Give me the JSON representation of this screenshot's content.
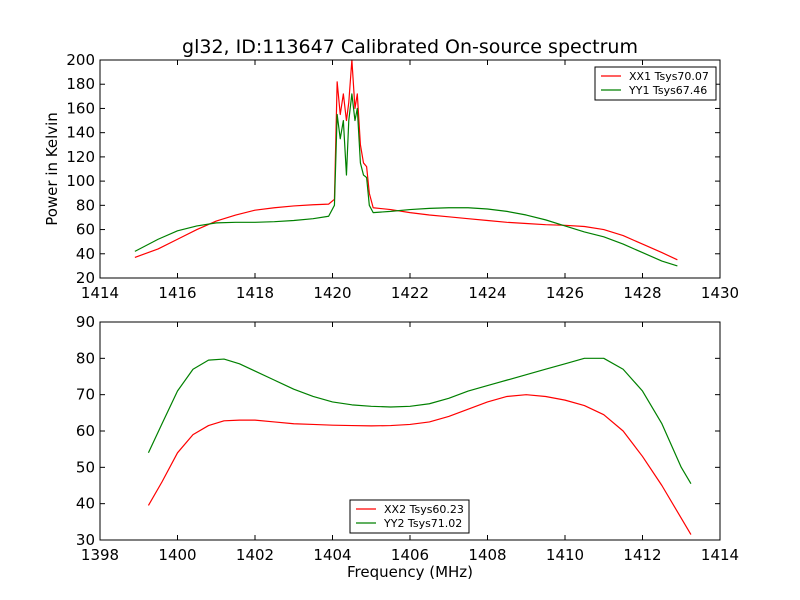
{
  "chart_data": [
    {
      "type": "line",
      "title": "gl32, ID:113647 Calibrated On-source spectrum",
      "xlabel": "",
      "ylabel": "Power in Kelvin",
      "xlim": [
        1414,
        1430
      ],
      "ylim": [
        20,
        200
      ],
      "xticks": [
        1414,
        1416,
        1418,
        1420,
        1422,
        1424,
        1426,
        1428,
        1430
      ],
      "yticks": [
        20,
        40,
        60,
        80,
        100,
        120,
        140,
        160,
        180,
        200
      ],
      "legend_position": "top-right",
      "series": [
        {
          "name": "XX1 Tsys70.07",
          "color": "#ff0000",
          "points": [
            [
              1414.9,
              37
            ],
            [
              1415.5,
              44
            ],
            [
              1416.0,
              52
            ],
            [
              1416.5,
              60
            ],
            [
              1417.0,
              67
            ],
            [
              1417.5,
              72
            ],
            [
              1418.0,
              76
            ],
            [
              1418.5,
              78
            ],
            [
              1419.0,
              79.5
            ],
            [
              1419.5,
              80.5
            ],
            [
              1419.9,
              81
            ],
            [
              1420.05,
              85
            ],
            [
              1420.12,
              182
            ],
            [
              1420.2,
              155
            ],
            [
              1420.28,
              172
            ],
            [
              1420.36,
              150
            ],
            [
              1420.42,
              165
            ],
            [
              1420.5,
              200
            ],
            [
              1420.58,
              160
            ],
            [
              1420.64,
              172
            ],
            [
              1420.72,
              130
            ],
            [
              1420.8,
              115
            ],
            [
              1420.88,
              112
            ],
            [
              1420.95,
              90
            ],
            [
              1421.05,
              78
            ],
            [
              1421.5,
              76.5
            ],
            [
              1422.0,
              74
            ],
            [
              1422.5,
              72
            ],
            [
              1423.0,
              70.5
            ],
            [
              1423.5,
              69
            ],
            [
              1424.0,
              67.5
            ],
            [
              1424.5,
              66
            ],
            [
              1425.0,
              65
            ],
            [
              1425.5,
              64
            ],
            [
              1426.0,
              63.5
            ],
            [
              1426.5,
              62.5
            ],
            [
              1427.0,
              60
            ],
            [
              1427.5,
              55
            ],
            [
              1428.0,
              48
            ],
            [
              1428.5,
              41
            ],
            [
              1428.9,
              35
            ]
          ]
        },
        {
          "name": "YY1 Tsys67.46",
          "color": "#008000",
          "points": [
            [
              1414.9,
              42
            ],
            [
              1415.5,
              52
            ],
            [
              1416.0,
              59
            ],
            [
              1416.5,
              63
            ],
            [
              1417.0,
              65.5
            ],
            [
              1417.5,
              66
            ],
            [
              1418.0,
              66
            ],
            [
              1418.5,
              66.5
            ],
            [
              1419.0,
              67.5
            ],
            [
              1419.5,
              69
            ],
            [
              1419.9,
              71
            ],
            [
              1420.05,
              80
            ],
            [
              1420.12,
              155
            ],
            [
              1420.2,
              135
            ],
            [
              1420.28,
              150
            ],
            [
              1420.36,
              105
            ],
            [
              1420.42,
              150
            ],
            [
              1420.5,
              172
            ],
            [
              1420.58,
              150
            ],
            [
              1420.64,
              160
            ],
            [
              1420.72,
              115
            ],
            [
              1420.8,
              105
            ],
            [
              1420.88,
              103
            ],
            [
              1420.95,
              80
            ],
            [
              1421.05,
              74
            ],
            [
              1421.5,
              75
            ],
            [
              1422.0,
              76.5
            ],
            [
              1422.5,
              77.5
            ],
            [
              1423.0,
              78
            ],
            [
              1423.5,
              78
            ],
            [
              1424.0,
              77
            ],
            [
              1424.5,
              75
            ],
            [
              1425.0,
              72
            ],
            [
              1425.5,
              68
            ],
            [
              1426.0,
              63
            ],
            [
              1426.5,
              58
            ],
            [
              1427.0,
              54
            ],
            [
              1427.5,
              48
            ],
            [
              1428.0,
              41
            ],
            [
              1428.5,
              34
            ],
            [
              1428.9,
              30
            ]
          ]
        }
      ]
    },
    {
      "type": "line",
      "title": "",
      "xlabel": "Frequency (MHz)",
      "ylabel": "",
      "xlim": [
        1398,
        1414
      ],
      "ylim": [
        30,
        90
      ],
      "xticks": [
        1398,
        1400,
        1402,
        1404,
        1406,
        1408,
        1410,
        1412,
        1414
      ],
      "yticks": [
        30,
        40,
        50,
        60,
        70,
        80,
        90
      ],
      "legend_position": "bottom-center",
      "series": [
        {
          "name": "XX2 Tsys60.23",
          "color": "#ff0000",
          "points": [
            [
              1399.25,
              39.5
            ],
            [
              1399.6,
              46
            ],
            [
              1400.0,
              54
            ],
            [
              1400.4,
              59
            ],
            [
              1400.8,
              61.5
            ],
            [
              1401.2,
              62.8
            ],
            [
              1401.6,
              63
            ],
            [
              1402.0,
              63
            ],
            [
              1402.5,
              62.5
            ],
            [
              1403.0,
              62
            ],
            [
              1403.5,
              61.8
            ],
            [
              1404.0,
              61.6
            ],
            [
              1404.5,
              61.5
            ],
            [
              1405.0,
              61.4
            ],
            [
              1405.5,
              61.5
            ],
            [
              1406.0,
              61.8
            ],
            [
              1406.5,
              62.5
            ],
            [
              1407.0,
              64
            ],
            [
              1407.5,
              66
            ],
            [
              1408.0,
              68
            ],
            [
              1408.5,
              69.5
            ],
            [
              1409.0,
              70
            ],
            [
              1409.5,
              69.5
            ],
            [
              1410.0,
              68.5
            ],
            [
              1410.5,
              67
            ],
            [
              1411.0,
              64.5
            ],
            [
              1411.5,
              60
            ],
            [
              1412.0,
              53
            ],
            [
              1412.5,
              45
            ],
            [
              1413.0,
              36
            ],
            [
              1413.25,
              31.5
            ]
          ]
        },
        {
          "name": "YY2 Tsys71.02",
          "color": "#008000",
          "points": [
            [
              1399.25,
              54
            ],
            [
              1399.6,
              62
            ],
            [
              1400.0,
              71
            ],
            [
              1400.4,
              77
            ],
            [
              1400.8,
              79.5
            ],
            [
              1401.2,
              79.8
            ],
            [
              1401.6,
              78.5
            ],
            [
              1402.0,
              76.5
            ],
            [
              1402.5,
              74
            ],
            [
              1403.0,
              71.5
            ],
            [
              1403.5,
              69.5
            ],
            [
              1404.0,
              68
            ],
            [
              1404.5,
              67.2
            ],
            [
              1405.0,
              66.8
            ],
            [
              1405.5,
              66.6
            ],
            [
              1406.0,
              66.8
            ],
            [
              1406.5,
              67.5
            ],
            [
              1407.0,
              69
            ],
            [
              1407.5,
              71
            ],
            [
              1408.0,
              72.5
            ],
            [
              1408.5,
              74
            ],
            [
              1409.0,
              75.5
            ],
            [
              1409.5,
              77
            ],
            [
              1410.0,
              78.5
            ],
            [
              1410.5,
              80
            ],
            [
              1411.0,
              80
            ],
            [
              1411.5,
              77
            ],
            [
              1412.0,
              71
            ],
            [
              1412.5,
              62
            ],
            [
              1413.0,
              50
            ],
            [
              1413.25,
              45.5
            ]
          ]
        }
      ]
    }
  ]
}
